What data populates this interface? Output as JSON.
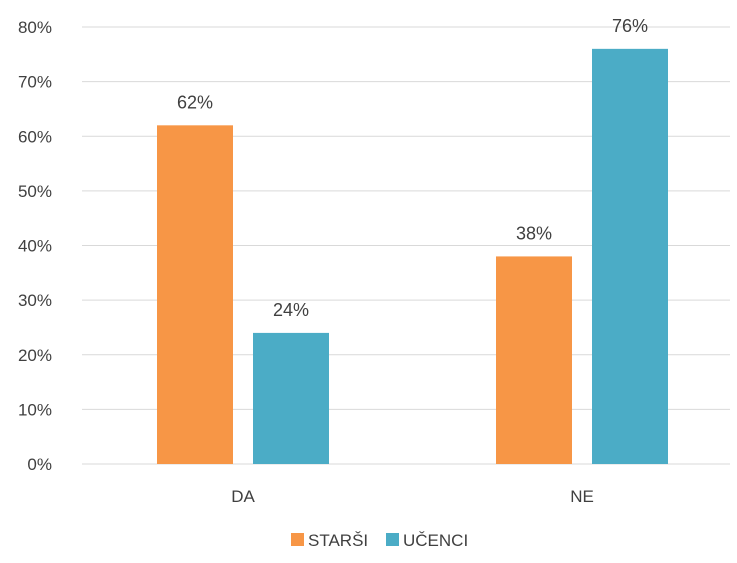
{
  "chart_data": {
    "type": "bar",
    "categories": [
      "DA",
      "NE"
    ],
    "series": [
      {
        "name": "STARŠI",
        "values": [
          62,
          38
        ],
        "color": "#F79646"
      },
      {
        "name": "UČENCI",
        "values": [
          24,
          76
        ],
        "color": "#4BACC6"
      }
    ],
    "data_labels": [
      [
        "62%",
        "38%"
      ],
      [
        "24%",
        "76%"
      ]
    ],
    "y_tick_labels": [
      "0%",
      "10%",
      "20%",
      "30%",
      "40%",
      "50%",
      "60%",
      "70%",
      "80%"
    ],
    "y_ticks": [
      0,
      10,
      20,
      30,
      40,
      50,
      60,
      70,
      80
    ],
    "ylim": [
      0,
      80
    ],
    "title": "",
    "xlabel": "",
    "ylabel": "",
    "grid": true,
    "gridline_color": "#D9D9D9",
    "legend_position": "bottom"
  }
}
